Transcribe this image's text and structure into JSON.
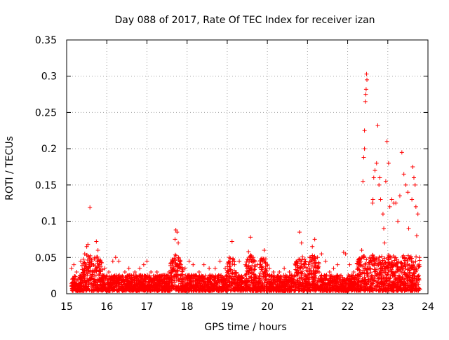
{
  "chart_data": {
    "type": "scatter",
    "title": "Day 088 of 2017, Rate Of TEC Index for receiver izan",
    "xlabel": "GPS time / hours",
    "ylabel": "ROTI / TECUs",
    "xlim": [
      15,
      24
    ],
    "ylim": [
      0,
      0.35
    ],
    "xticks": [
      15,
      16,
      17,
      18,
      19,
      20,
      21,
      22,
      23,
      24
    ],
    "xtick_labels": [
      "15",
      "16",
      "17",
      "18",
      "19",
      "20",
      "21",
      "22",
      "23",
      "24"
    ],
    "yticks": [
      0,
      0.05,
      0.1,
      0.15,
      0.2,
      0.25,
      0.3,
      0.35
    ],
    "ytick_labels": [
      "0",
      "0.05",
      "0.1",
      "0.15",
      "0.2",
      "0.25",
      "0.3",
      "0.35"
    ],
    "grid": true,
    "legend": "none",
    "marker": "+",
    "color": "#ff0000",
    "approximate_scatter_points": 4000,
    "series": [
      {
        "name": "ROTI",
        "points": [
          [
            15.12,
            0.035
          ],
          [
            15.18,
            0.04
          ],
          [
            15.25,
            0.03
          ],
          [
            15.35,
            0.045
          ],
          [
            15.45,
            0.055
          ],
          [
            15.5,
            0.065
          ],
          [
            15.53,
            0.068
          ],
          [
            15.58,
            0.119
          ],
          [
            15.62,
            0.045
          ],
          [
            15.7,
            0.05
          ],
          [
            15.74,
            0.072
          ],
          [
            15.78,
            0.06
          ],
          [
            15.85,
            0.045
          ],
          [
            15.95,
            0.035
          ],
          [
            16.05,
            0.03
          ],
          [
            16.15,
            0.045
          ],
          [
            16.22,
            0.05
          ],
          [
            16.3,
            0.045
          ],
          [
            16.45,
            0.03
          ],
          [
            16.55,
            0.035
          ],
          [
            16.7,
            0.03
          ],
          [
            16.82,
            0.035
          ],
          [
            16.92,
            0.04
          ],
          [
            17.0,
            0.045
          ],
          [
            17.1,
            0.03
          ],
          [
            17.25,
            0.03
          ],
          [
            17.38,
            0.025
          ],
          [
            17.55,
            0.03
          ],
          [
            17.63,
            0.045
          ],
          [
            17.7,
            0.075
          ],
          [
            17.72,
            0.088
          ],
          [
            17.75,
            0.085
          ],
          [
            17.78,
            0.07
          ],
          [
            17.85,
            0.04
          ],
          [
            17.95,
            0.035
          ],
          [
            18.05,
            0.045
          ],
          [
            18.15,
            0.04
          ],
          [
            18.3,
            0.03
          ],
          [
            18.42,
            0.04
          ],
          [
            18.55,
            0.035
          ],
          [
            18.7,
            0.035
          ],
          [
            18.82,
            0.045
          ],
          [
            18.95,
            0.035
          ],
          [
            19.05,
            0.05
          ],
          [
            19.12,
            0.072
          ],
          [
            19.18,
            0.045
          ],
          [
            19.3,
            0.045
          ],
          [
            19.45,
            0.04
          ],
          [
            19.53,
            0.058
          ],
          [
            19.58,
            0.078
          ],
          [
            19.65,
            0.05
          ],
          [
            19.75,
            0.04
          ],
          [
            19.92,
            0.06
          ],
          [
            20.05,
            0.035
          ],
          [
            20.15,
            0.03
          ],
          [
            20.3,
            0.03
          ],
          [
            20.42,
            0.035
          ],
          [
            20.55,
            0.03
          ],
          [
            20.7,
            0.04
          ],
          [
            20.8,
            0.085
          ],
          [
            20.85,
            0.07
          ],
          [
            20.95,
            0.045
          ],
          [
            21.05,
            0.05
          ],
          [
            21.12,
            0.065
          ],
          [
            21.18,
            0.075
          ],
          [
            21.25,
            0.05
          ],
          [
            21.35,
            0.055
          ],
          [
            21.45,
            0.045
          ],
          [
            21.55,
            0.03
          ],
          [
            21.65,
            0.035
          ],
          [
            21.75,
            0.04
          ],
          [
            21.9,
            0.057
          ],
          [
            21.95,
            0.055
          ],
          [
            22.05,
            0.04
          ],
          [
            22.15,
            0.03
          ],
          [
            22.25,
            0.035
          ],
          [
            22.35,
            0.06
          ],
          [
            22.38,
            0.155
          ],
          [
            22.4,
            0.188
          ],
          [
            22.42,
            0.2
          ],
          [
            22.42,
            0.225
          ],
          [
            22.44,
            0.265
          ],
          [
            22.45,
            0.275
          ],
          [
            22.46,
            0.282
          ],
          [
            22.47,
            0.303
          ],
          [
            22.48,
            0.295
          ],
          [
            22.55,
            0.05
          ],
          [
            22.62,
            0.125
          ],
          [
            22.63,
            0.13
          ],
          [
            22.65,
            0.16
          ],
          [
            22.68,
            0.17
          ],
          [
            22.72,
            0.18
          ],
          [
            22.75,
            0.232
          ],
          [
            22.78,
            0.15
          ],
          [
            22.8,
            0.16
          ],
          [
            22.82,
            0.13
          ],
          [
            22.88,
            0.11
          ],
          [
            22.9,
            0.09
          ],
          [
            22.92,
            0.07
          ],
          [
            22.95,
            0.155
          ],
          [
            22.98,
            0.21
          ],
          [
            23.02,
            0.18
          ],
          [
            23.05,
            0.12
          ],
          [
            23.1,
            0.13
          ],
          [
            23.15,
            0.125
          ],
          [
            23.2,
            0.125
          ],
          [
            23.25,
            0.1
          ],
          [
            23.3,
            0.135
          ],
          [
            23.35,
            0.195
          ],
          [
            23.4,
            0.165
          ],
          [
            23.45,
            0.15
          ],
          [
            23.5,
            0.14
          ],
          [
            23.52,
            0.09
          ],
          [
            23.55,
            0.05
          ],
          [
            23.6,
            0.13
          ],
          [
            23.62,
            0.175
          ],
          [
            23.65,
            0.16
          ],
          [
            23.68,
            0.15
          ],
          [
            23.7,
            0.12
          ],
          [
            23.72,
            0.08
          ],
          [
            23.75,
            0.11
          ],
          [
            23.78,
            0.04
          ]
        ]
      }
    ]
  }
}
